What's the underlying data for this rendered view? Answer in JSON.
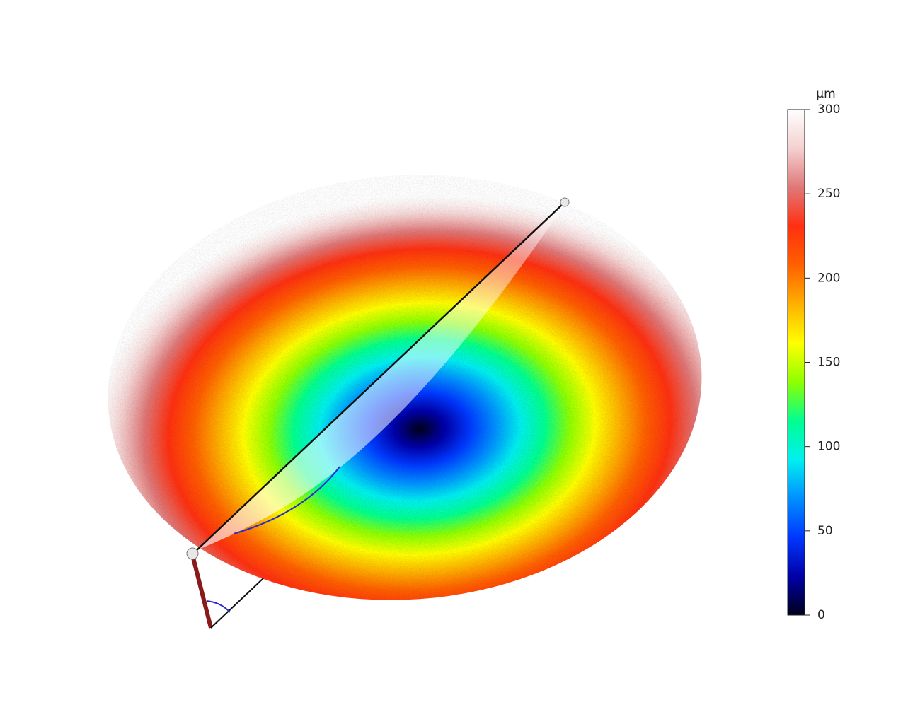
{
  "chart_data": {
    "type": "surface3d",
    "colorbar_label": "µm",
    "clim": [
      0,
      300
    ],
    "cticks": [
      0,
      50,
      100,
      150,
      200,
      250,
      300
    ],
    "colormap": [
      "#00001a",
      "#0000a8",
      "#0038ff",
      "#0090ff",
      "#00f0f0",
      "#00ff90",
      "#90ff00",
      "#ffff00",
      "#ffb000",
      "#ff6000",
      "#ff3010",
      "#e07878",
      "#f4d0d0",
      "#ffffff"
    ]
  }
}
